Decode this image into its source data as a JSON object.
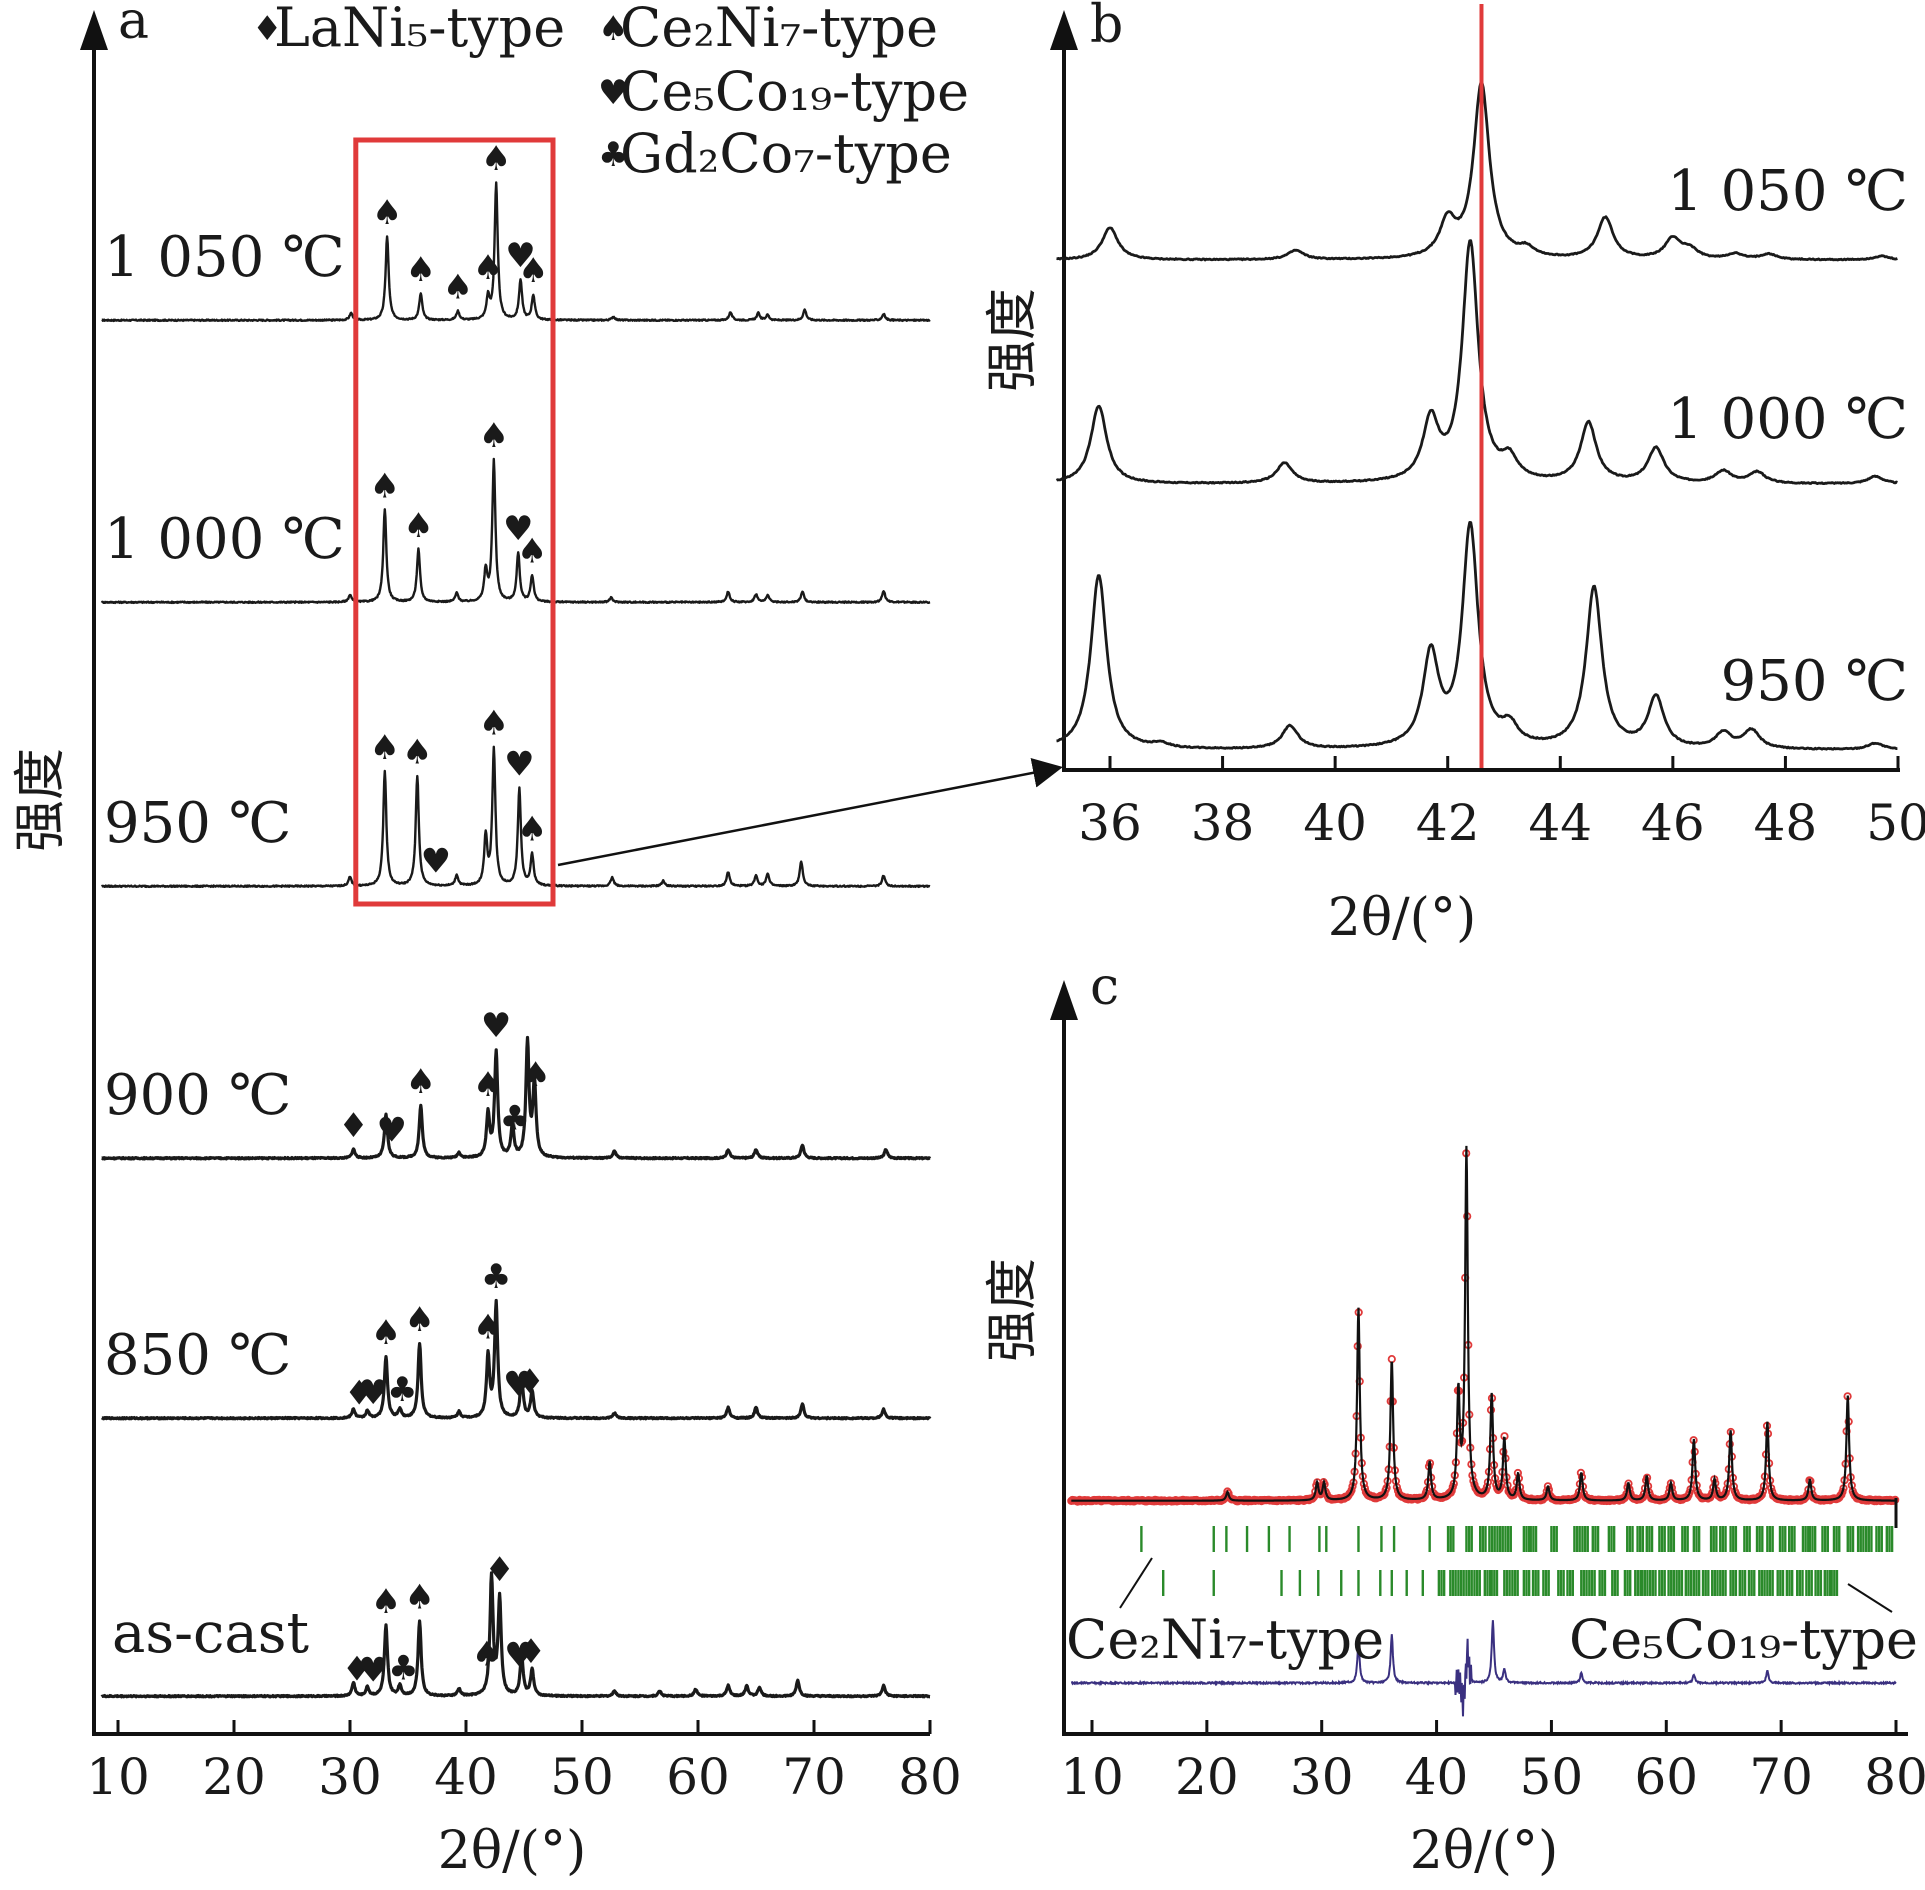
{
  "colors": {
    "trace": "#1a1a1a",
    "highlight": "#e03a3a",
    "observed": "#e03a3a",
    "reflections": "#2a8a2a",
    "difference": "#3a3080",
    "axis": "#111111"
  },
  "legend": [
    {
      "symbol": "♦",
      "label": "LaNi₅-type"
    },
    {
      "symbol": "♠",
      "label": "Ce₂Ni₇-type"
    },
    {
      "symbol": "♥",
      "label": "Ce₅Co₁₉-type"
    },
    {
      "symbol": "♣",
      "label": "Gd₂Co₇-type"
    }
  ],
  "chart_data": [
    {
      "panel": "a",
      "type": "line",
      "xlabel": "2θ/(°)",
      "ylabel": "强度",
      "xlim": [
        8,
        80
      ],
      "xticks": [
        10,
        20,
        30,
        40,
        50,
        60,
        70,
        80
      ],
      "highlight_range": [
        30.5,
        47.5
      ],
      "series": [
        {
          "name": "1 050 ℃",
          "peaks": [
            [
              30.1,
              0.08
            ],
            [
              33.2,
              0.95
            ],
            [
              36.1,
              0.3
            ],
            [
              39.3,
              0.1
            ],
            [
              41.9,
              0.25
            ],
            [
              42.6,
              1.55
            ],
            [
              44.7,
              0.45
            ],
            [
              45.8,
              0.28
            ],
            [
              52.7,
              0.04
            ],
            [
              62.8,
              0.09
            ],
            [
              65.2,
              0.08
            ],
            [
              66.0,
              0.06
            ],
            [
              69.2,
              0.12
            ],
            [
              76.0,
              0.07
            ]
          ],
          "markers": [
            {
              "x": 33.2,
              "s": "♠"
            },
            {
              "x": 36.1,
              "s": "♠"
            },
            {
              "x": 39.3,
              "s": "♠"
            },
            {
              "x": 41.9,
              "s": "♠"
            },
            {
              "x": 42.6,
              "s": "♠"
            },
            {
              "x": 44.7,
              "s": "♥"
            },
            {
              "x": 45.8,
              "s": "♠"
            }
          ]
        },
        {
          "name": "1 000 ℃",
          "peaks": [
            [
              30.0,
              0.08
            ],
            [
              33.0,
              1.05
            ],
            [
              35.9,
              0.6
            ],
            [
              39.2,
              0.1
            ],
            [
              41.7,
              0.35
            ],
            [
              42.4,
              1.6
            ],
            [
              44.5,
              0.55
            ],
            [
              45.7,
              0.3
            ],
            [
              52.5,
              0.05
            ],
            [
              62.6,
              0.12
            ],
            [
              65.0,
              0.09
            ],
            [
              66.0,
              0.08
            ],
            [
              69.0,
              0.12
            ],
            [
              76.0,
              0.13
            ]
          ],
          "markers": [
            {
              "x": 33.0,
              "s": "♠"
            },
            {
              "x": 35.9,
              "s": "♠"
            },
            {
              "x": 42.4,
              "s": "♠"
            },
            {
              "x": 44.5,
              "s": "♥"
            },
            {
              "x": 45.7,
              "s": "♠"
            }
          ]
        },
        {
          "name": "950 ℃",
          "peaks": [
            [
              30.0,
              0.1
            ],
            [
              33.0,
              1.3
            ],
            [
              35.8,
              1.25
            ],
            [
              39.2,
              0.12
            ],
            [
              41.7,
              0.55
            ],
            [
              42.4,
              1.55
            ],
            [
              44.6,
              1.1
            ],
            [
              45.7,
              0.35
            ],
            [
              52.6,
              0.1
            ],
            [
              57.0,
              0.06
            ],
            [
              62.6,
              0.16
            ],
            [
              65.0,
              0.12
            ],
            [
              66.0,
              0.14
            ],
            [
              68.9,
              0.28
            ],
            [
              76.0,
              0.12
            ]
          ],
          "markers": [
            {
              "x": 33.0,
              "s": "♠"
            },
            {
              "x": 35.8,
              "s": "♠"
            },
            {
              "x": 37.4,
              "s": "♥"
            },
            {
              "x": 42.4,
              "s": "♠"
            },
            {
              "x": 44.6,
              "s": "♥"
            },
            {
              "x": 45.7,
              "s": "♠"
            }
          ]
        },
        {
          "name": "900 ℃",
          "peaks": [
            [
              30.3,
              0.1
            ],
            [
              33.1,
              0.5
            ],
            [
              36.1,
              0.6
            ],
            [
              39.4,
              0.06
            ],
            [
              41.9,
              0.5
            ],
            [
              42.6,
              1.2
            ],
            [
              44.0,
              0.35
            ],
            [
              45.3,
              1.3
            ],
            [
              45.9,
              0.85
            ],
            [
              52.8,
              0.08
            ],
            [
              62.6,
              0.1
            ],
            [
              65.0,
              0.1
            ],
            [
              69.0,
              0.15
            ],
            [
              76.2,
              0.1
            ]
          ],
          "markers": [
            {
              "x": 30.3,
              "s": "♦"
            },
            {
              "x": 33.6,
              "s": "♥"
            },
            {
              "x": 36.1,
              "s": "♠"
            },
            {
              "x": 41.9,
              "s": "♠"
            },
            {
              "x": 42.6,
              "s": "♥"
            },
            {
              "x": 44.2,
              "s": "♣"
            },
            {
              "x": 46.0,
              "s": "♠"
            }
          ]
        },
        {
          "name": "850 ℃",
          "peaks": [
            [
              30.3,
              0.1
            ],
            [
              31.5,
              0.08
            ],
            [
              33.1,
              0.7
            ],
            [
              34.3,
              0.1
            ],
            [
              36.0,
              0.85
            ],
            [
              39.4,
              0.07
            ],
            [
              41.9,
              0.7
            ],
            [
              42.6,
              1.3
            ],
            [
              44.8,
              0.45
            ],
            [
              45.7,
              0.3
            ],
            [
              52.8,
              0.06
            ],
            [
              62.6,
              0.12
            ],
            [
              65.0,
              0.12
            ],
            [
              69.0,
              0.16
            ],
            [
              76.0,
              0.1
            ]
          ],
          "markers": [
            {
              "x": 30.8,
              "s": "♦"
            },
            {
              "x": 32.0,
              "s": "♥"
            },
            {
              "x": 33.1,
              "s": "♠"
            },
            {
              "x": 34.5,
              "s": "♣"
            },
            {
              "x": 36.0,
              "s": "♠"
            },
            {
              "x": 41.9,
              "s": "♠"
            },
            {
              "x": 42.6,
              "s": "♣"
            },
            {
              "x": 44.5,
              "s": "♥"
            },
            {
              "x": 45.5,
              "s": "♦"
            }
          ]
        },
        {
          "name": "as-cast",
          "peaks": [
            [
              30.3,
              0.15
            ],
            [
              31.5,
              0.1
            ],
            [
              33.1,
              0.8
            ],
            [
              34.3,
              0.12
            ],
            [
              36.0,
              0.85
            ],
            [
              39.4,
              0.08
            ],
            [
              42.2,
              1.35
            ],
            [
              42.9,
              1.1
            ],
            [
              44.8,
              0.45
            ],
            [
              45.7,
              0.3
            ],
            [
              52.8,
              0.06
            ],
            [
              56.7,
              0.06
            ],
            [
              59.8,
              0.08
            ],
            [
              62.6,
              0.12
            ],
            [
              64.2,
              0.12
            ],
            [
              65.3,
              0.1
            ],
            [
              68.6,
              0.18
            ],
            [
              76.0,
              0.12
            ]
          ],
          "markers": [
            {
              "x": 30.6,
              "s": "♦"
            },
            {
              "x": 32.0,
              "s": "♥"
            },
            {
              "x": 33.1,
              "s": "♠"
            },
            {
              "x": 34.6,
              "s": "♣"
            },
            {
              "x": 36.0,
              "s": "♠"
            },
            {
              "x": 41.8,
              "s": "♠"
            },
            {
              "x": 42.9,
              "s": "♦"
            },
            {
              "x": 44.6,
              "s": "♥"
            },
            {
              "x": 45.6,
              "s": "♦"
            }
          ]
        }
      ]
    },
    {
      "panel": "b",
      "type": "line",
      "xlabel": "2θ/(°)",
      "ylabel": "强度",
      "xlim": [
        35,
        50
      ],
      "xticks": [
        36,
        38,
        40,
        42,
        44,
        46,
        48,
        50
      ],
      "reference_line_x": 42.6,
      "series": [
        {
          "name": "1 050 ℃",
          "peaks": [
            [
              36.0,
              0.35
            ],
            [
              39.3,
              0.1
            ],
            [
              42.0,
              0.38
            ],
            [
              42.6,
              1.9
            ],
            [
              43.4,
              0.09
            ],
            [
              44.8,
              0.45
            ],
            [
              46.0,
              0.22
            ],
            [
              46.3,
              0.1
            ],
            [
              47.1,
              0.06
            ],
            [
              47.7,
              0.06
            ],
            [
              49.7,
              0.04
            ]
          ]
        },
        {
          "name": "1 000 ℃",
          "peaks": [
            [
              35.8,
              0.85
            ],
            [
              39.1,
              0.22
            ],
            [
              41.7,
              0.65
            ],
            [
              42.4,
              2.6
            ],
            [
              43.1,
              0.22
            ],
            [
              44.5,
              0.65
            ],
            [
              45.7,
              0.38
            ],
            [
              46.9,
              0.13
            ],
            [
              47.5,
              0.12
            ],
            [
              49.6,
              0.08
            ]
          ]
        },
        {
          "name": "950 ℃",
          "peaks": [
            [
              35.8,
              1.9
            ],
            [
              36.9,
              0.05
            ],
            [
              39.2,
              0.25
            ],
            [
              41.7,
              1.0
            ],
            [
              42.4,
              2.4
            ],
            [
              43.1,
              0.2
            ],
            [
              44.6,
              1.75
            ],
            [
              45.7,
              0.55
            ],
            [
              46.9,
              0.17
            ],
            [
              47.4,
              0.2
            ],
            [
              49.6,
              0.07
            ]
          ]
        }
      ]
    },
    {
      "panel": "c",
      "type": "line",
      "xlabel": "2θ/(°)",
      "ylabel": "强度",
      "xlim": [
        8,
        80
      ],
      "xticks": [
        10,
        20,
        30,
        40,
        50,
        60,
        70,
        80
      ],
      "series": [
        {
          "name": "observed",
          "peaks": [
            [
              21.8,
              0.05
            ],
            [
              29.6,
              0.1
            ],
            [
              30.2,
              0.1
            ],
            [
              33.2,
              1.1
            ],
            [
              36.1,
              0.8
            ],
            [
              39.4,
              0.22
            ],
            [
              41.9,
              0.6
            ],
            [
              42.6,
              2.0
            ],
            [
              44.8,
              0.6
            ],
            [
              45.9,
              0.35
            ],
            [
              47.1,
              0.15
            ],
            [
              49.7,
              0.08
            ],
            [
              52.6,
              0.16
            ],
            [
              56.7,
              0.1
            ],
            [
              58.3,
              0.14
            ],
            [
              60.4,
              0.1
            ],
            [
              62.4,
              0.35
            ],
            [
              64.2,
              0.12
            ],
            [
              65.6,
              0.4
            ],
            [
              68.8,
              0.45
            ],
            [
              72.5,
              0.12
            ],
            [
              75.8,
              0.6
            ]
          ]
        }
      ],
      "reflections": {
        "Ce₂Ni₇-type": [
          14.3,
          20.6,
          21.7,
          23.5,
          25.4,
          27.2,
          29.8,
          30.4,
          33.2,
          35.2,
          36.3,
          39.4,
          41.0,
          42.6,
          43.8,
          44.6,
          45.3,
          46.0,
          47.6,
          48.2,
          50.0,
          52.0,
          52.7,
          53.6,
          55.0,
          56.6,
          57.5,
          58.3,
          59.4,
          60.2,
          61.4,
          62.4,
          63.9,
          64.7,
          65.6,
          66.8,
          67.9,
          68.8,
          69.9,
          70.7,
          71.9,
          72.5,
          73.6,
          74.6,
          75.8,
          76.7,
          77.4,
          78.3,
          79.2
        ],
        "Ce₅Co₁₉-type": [
          16.2,
          20.6,
          26.5,
          28.1,
          29.7,
          31.7,
          33.2,
          35.1,
          36.1,
          37.4,
          38.8,
          40.2,
          41.2,
          41.9,
          42.6,
          43.3,
          44.2,
          44.8,
          45.9,
          46.6,
          47.6,
          48.4,
          49.3,
          50.6,
          51.4,
          52.6,
          53.3,
          54.2,
          55.3,
          56.4,
          57.3,
          57.9,
          58.6,
          59.4,
          60.2,
          60.9,
          61.7,
          62.4,
          63.2,
          64.0,
          64.7,
          65.6,
          66.4,
          67.2,
          68.1,
          68.8,
          69.7,
          70.5,
          71.4,
          72.2,
          73.0,
          73.8,
          74.4
        ]
      },
      "reflection_labels": [
        "Ce₂Ni₇-type",
        "Ce₅Co₁₉-type"
      ]
    }
  ],
  "panel_labels": [
    "a",
    "b",
    "c"
  ]
}
